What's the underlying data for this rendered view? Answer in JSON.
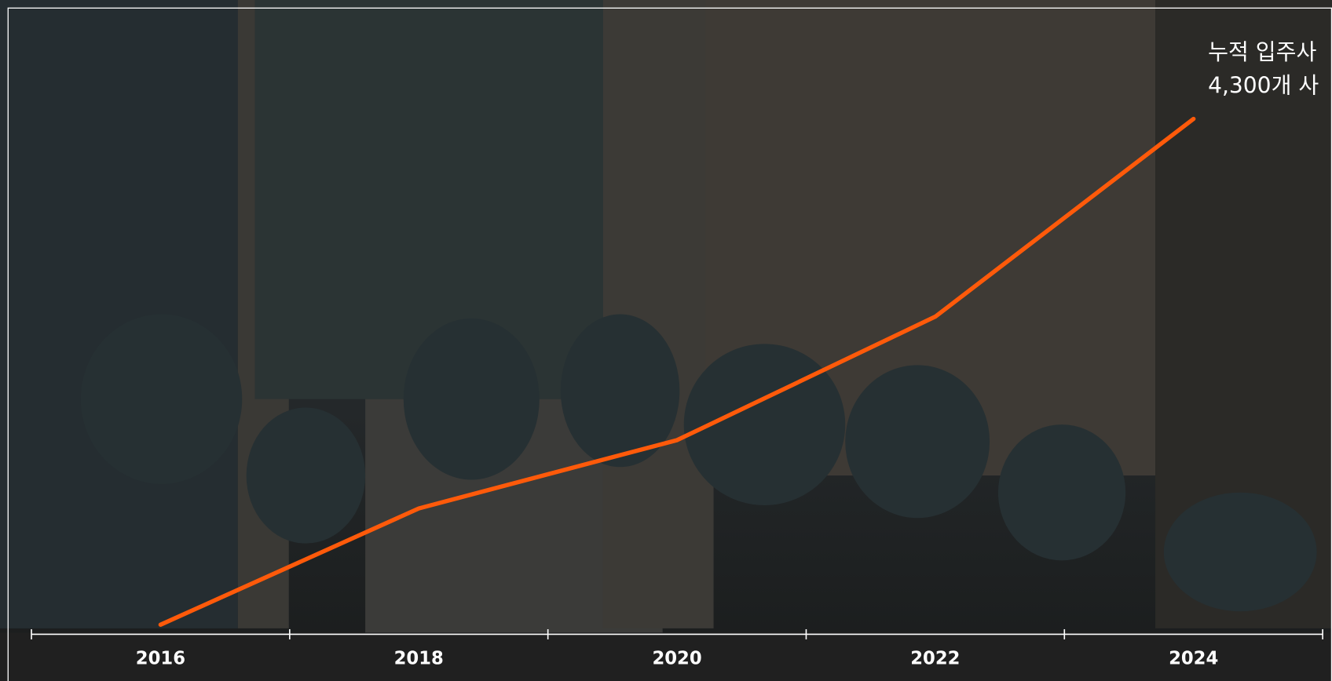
{
  "chart_data": {
    "type": "line",
    "annotation": "누적 입주사",
    "categories": [
      "2016",
      "2018",
      "2020",
      "2022",
      "2024"
    ],
    "values": [
      80,
      1050,
      1620,
      2650,
      4300
    ],
    "value_labels": [
      null,
      null,
      null,
      null,
      "4,300개 사"
    ],
    "color": "#ff5a0a",
    "ylim": [
      0,
      4300
    ]
  }
}
